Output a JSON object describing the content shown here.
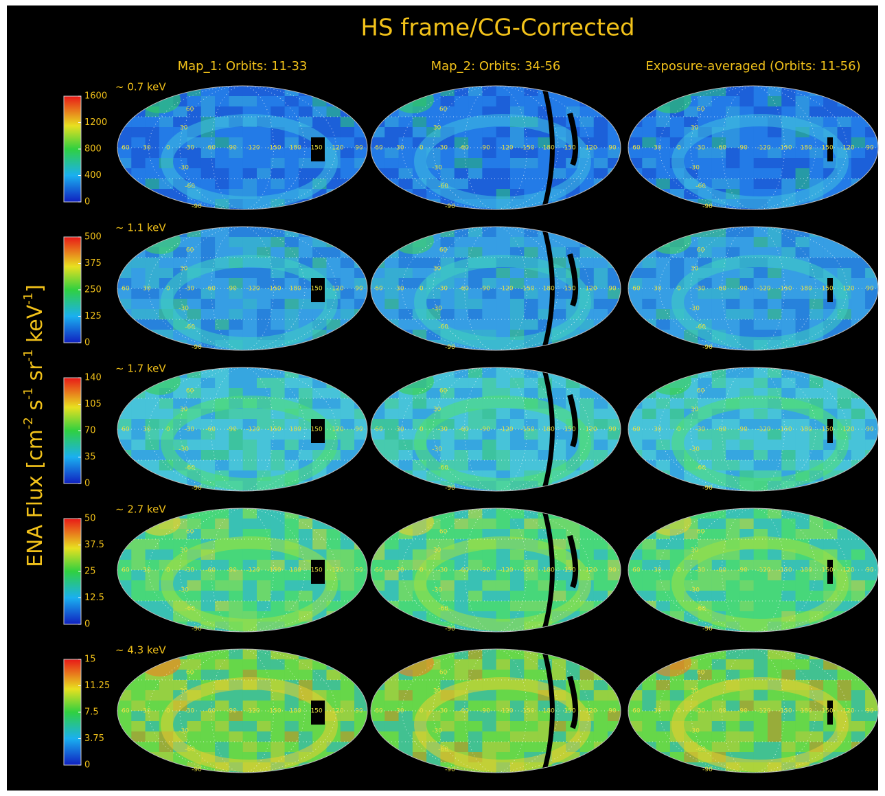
{
  "title": "HS frame/CG-Corrected",
  "columns": [
    "Map_1: Orbits: 11-33",
    "Map_2: Orbits: 34-56",
    "Exposure-averaged (Orbits: 11-56)"
  ],
  "colorbar_label": [
    "ENA Flux [cm",
    "-2",
    " s",
    "-1",
    " sr",
    "-1",
    " keV",
    "-1",
    "]"
  ],
  "grid_labels": {
    "longitude": [
      60,
      30,
      0,
      -30,
      -60,
      -90,
      -120,
      -150,
      180,
      150,
      120,
      90
    ],
    "latitude": [
      60,
      30,
      -30,
      -60,
      -90
    ]
  },
  "rows": [
    {
      "energy": "~ 0.7 keV",
      "ticks": [
        0,
        400,
        800,
        1200,
        1600
      ]
    },
    {
      "energy": "~ 1.1 keV",
      "ticks": [
        0,
        125,
        250,
        375,
        500
      ]
    },
    {
      "energy": "~ 1.7 keV",
      "ticks": [
        0,
        35,
        70,
        105,
        140
      ]
    },
    {
      "energy": "~ 2.7 keV",
      "ticks": [
        0,
        12.5,
        25,
        37.5,
        50
      ]
    },
    {
      "energy": "~ 4.3 keV",
      "ticks": [
        0,
        3.75,
        7.5,
        11.25,
        15
      ]
    }
  ]
}
